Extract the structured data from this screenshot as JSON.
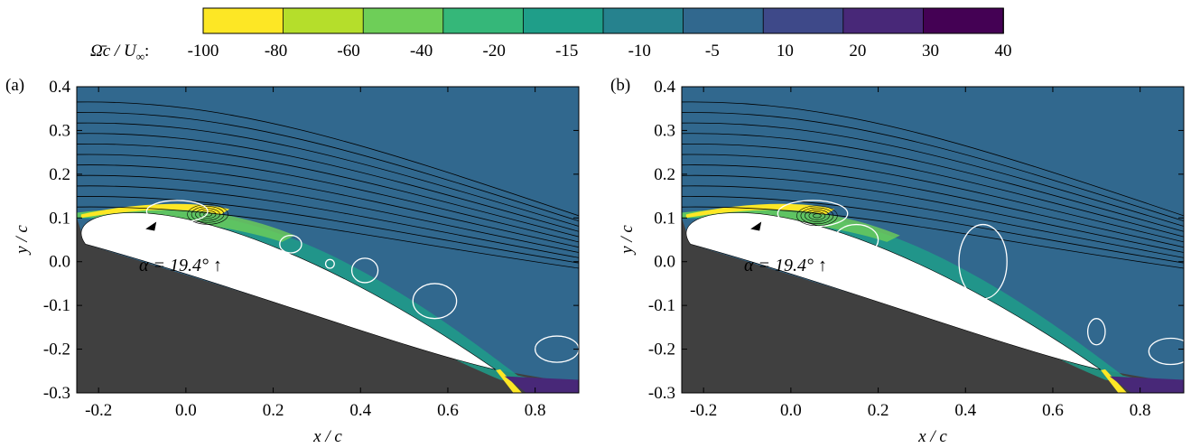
{
  "colorbar": {
    "label_main": "Ω̄c / U",
    "label_sub": "∞",
    "label_suffix": ":",
    "ticks": [
      "-100",
      "-80",
      "-60",
      "-40",
      "-20",
      "-15",
      "-10",
      "-5",
      "10",
      "20",
      "30",
      "40"
    ],
    "colors": [
      "#fde725",
      "#b5de2b",
      "#6ece58",
      "#35b779",
      "#1f9e89",
      "#26828e",
      "#31688e",
      "#3e4989",
      "#482878",
      "#440154"
    ]
  },
  "chart_data": [
    {
      "type": "heatmap",
      "panel_label": "(a)",
      "annotation": "α = 19.4° ↑",
      "xlabel": "x / c",
      "ylabel": "y / c",
      "xlim": [
        -0.25,
        0.9
      ],
      "ylim": [
        -0.3,
        0.4
      ],
      "xticks": [
        "-0.2",
        "0.0",
        "0.2",
        "0.4",
        "0.6",
        "0.8"
      ],
      "yticks": [
        "0.4",
        "0.3",
        "0.2",
        "0.1",
        "0.0",
        "-0.1",
        "-0.2",
        "-0.3"
      ],
      "background_value_range": [
        "-10",
        "-5"
      ],
      "airfoil_color": "#ffffff",
      "shadow_color": "#404040",
      "marker": {
        "shape": "triangle",
        "x": -0.08,
        "y": 0.085
      },
      "vortex_core": {
        "x": 0.05,
        "y": 0.108
      },
      "white_contours": [
        {
          "x": -0.02,
          "y": 0.115,
          "rx": 0.07,
          "ry": 0.025
        },
        {
          "x": 0.24,
          "y": 0.04,
          "rx": 0.025,
          "ry": 0.02
        },
        {
          "x": 0.33,
          "y": -0.005,
          "rx": 0.01,
          "ry": 0.01
        },
        {
          "x": 0.41,
          "y": -0.02,
          "rx": 0.03,
          "ry": 0.028
        },
        {
          "x": 0.57,
          "y": -0.09,
          "rx": 0.05,
          "ry": 0.04
        },
        {
          "x": 0.85,
          "y": -0.2,
          "rx": 0.05,
          "ry": 0.03
        }
      ]
    },
    {
      "type": "heatmap",
      "panel_label": "(b)",
      "annotation": "α = 19.4° ↑",
      "xlabel": "x / c",
      "ylabel": "y / c",
      "xlim": [
        -0.25,
        0.9
      ],
      "ylim": [
        -0.3,
        0.4
      ],
      "xticks": [
        "-0.2",
        "0.0",
        "0.2",
        "0.4",
        "0.6",
        "0.8"
      ],
      "yticks": [
        "0.4",
        "0.3",
        "0.2",
        "0.1",
        "0.0",
        "-0.1",
        "-0.2",
        "-0.3"
      ],
      "background_value_range": [
        "-10",
        "-5"
      ],
      "airfoil_color": "#ffffff",
      "shadow_color": "#404040",
      "marker": {
        "shape": "triangle",
        "x": -0.08,
        "y": 0.085
      },
      "vortex_core": {
        "x": 0.06,
        "y": 0.105
      },
      "white_contours": [
        {
          "x": 0.05,
          "y": 0.11,
          "rx": 0.08,
          "ry": 0.03
        },
        {
          "x": 0.15,
          "y": 0.05,
          "rx": 0.05,
          "ry": 0.035
        },
        {
          "x": 0.44,
          "y": 0.0,
          "rx": 0.055,
          "ry": 0.085
        },
        {
          "x": 0.7,
          "y": -0.16,
          "rx": 0.02,
          "ry": 0.03
        },
        {
          "x": 0.87,
          "y": -0.205,
          "rx": 0.05,
          "ry": 0.03
        }
      ]
    }
  ]
}
